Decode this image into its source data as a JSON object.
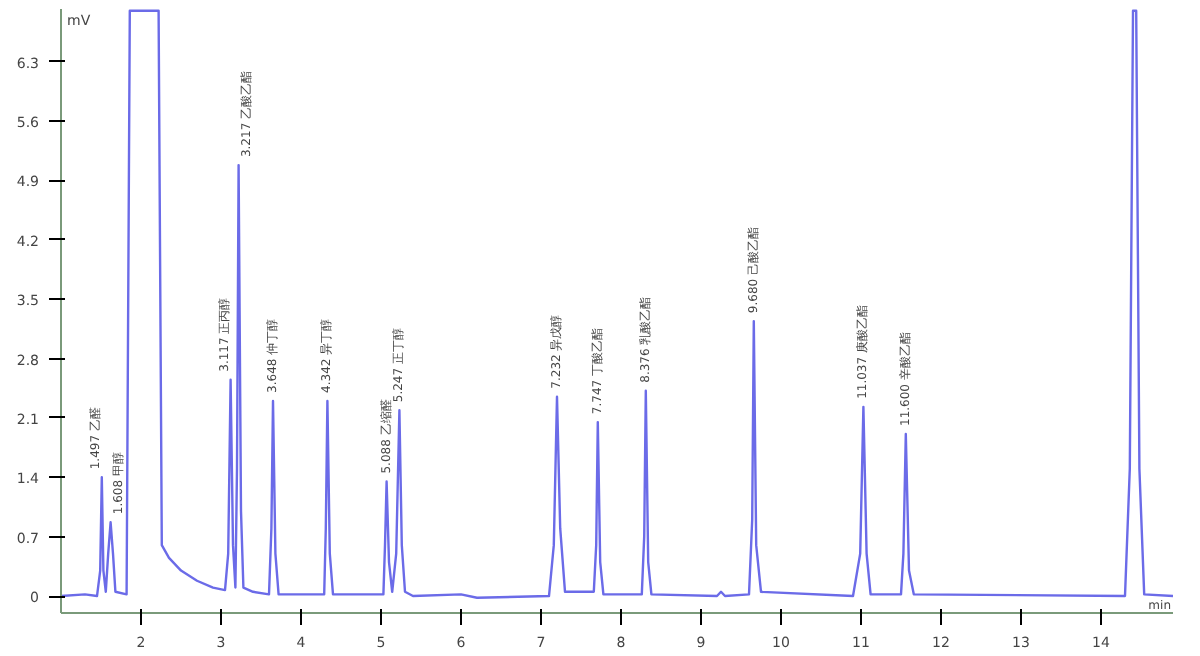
{
  "chart_data": {
    "type": "line",
    "xlabel": "min",
    "ylabel": "mV",
    "x": [
      1.0,
      1.3,
      1.45,
      1.49,
      1.51,
      1.53,
      1.56,
      1.59,
      1.62,
      1.65,
      1.68,
      1.82,
      1.86,
      2.22,
      2.26,
      2.35,
      2.5,
      2.7,
      2.9,
      3.05,
      3.09,
      3.12,
      3.15,
      3.18,
      3.2,
      3.22,
      3.25,
      3.28,
      3.4,
      3.6,
      3.63,
      3.65,
      3.68,
      3.72,
      4.29,
      4.31,
      4.33,
      4.36,
      4.4,
      5.03,
      5.05,
      5.07,
      5.1,
      5.14,
      5.19,
      5.23,
      5.26,
      5.3,
      5.4,
      6.0,
      6.2,
      7.1,
      7.16,
      7.2,
      7.24,
      7.3,
      7.66,
      7.69,
      7.71,
      7.74,
      7.78,
      8.26,
      8.29,
      8.31,
      8.34,
      8.38,
      9.2,
      9.25,
      9.3,
      9.6,
      9.64,
      9.66,
      9.69,
      9.75,
      10.9,
      10.99,
      11.03,
      11.07,
      11.12,
      11.5,
      11.53,
      11.56,
      11.6,
      11.66,
      14.3,
      14.36,
      14.4,
      14.44,
      14.48,
      14.54,
      14.9
    ],
    "series": [
      {
        "color": "#6b6be8",
        "values": [
          0,
          0.02,
          0,
          0.3,
          1.4,
          0.3,
          0.05,
          0.5,
          0.87,
          0.5,
          0.05,
          0.02,
          6.9,
          6.9,
          0.6,
          0.45,
          0.3,
          0.18,
          0.1,
          0.07,
          0.5,
          2.55,
          0.6,
          0.1,
          1.5,
          5.08,
          1.0,
          0.1,
          0.05,
          0.02,
          0.8,
          2.3,
          0.5,
          0.02,
          0.02,
          0.8,
          2.3,
          0.5,
          0.02,
          0.02,
          0.6,
          1.35,
          0.4,
          0.05,
          0.5,
          2.19,
          0.6,
          0.05,
          0,
          0.02,
          -0.02,
          0,
          0.6,
          2.35,
          0.8,
          0.05,
          0.05,
          0.6,
          2.05,
          0.4,
          0.02,
          0.02,
          0.7,
          2.42,
          0.4,
          0.02,
          0,
          0.05,
          0,
          0.02,
          0.9,
          3.24,
          0.6,
          0.05,
          0,
          0.5,
          2.23,
          0.5,
          0.02,
          0.02,
          0.5,
          1.91,
          0.3,
          0.02,
          0,
          1.5,
          6.9,
          6.9,
          1.5,
          0.02,
          0
        ]
      }
    ],
    "xlim": [
      1.0,
      14.9
    ],
    "ylim": [
      -0.2,
      6.92
    ],
    "xticks": [
      2,
      3,
      4,
      5,
      6,
      7,
      8,
      9,
      10,
      11,
      12,
      13,
      14
    ],
    "yticks": [
      0,
      0.7,
      1.4,
      2.1,
      2.8,
      3.5,
      4.2,
      4.9,
      5.6,
      6.3
    ],
    "grid": false,
    "marker": "none",
    "line_style": "solid",
    "annotations": [
      {
        "text": "1.497 乙醛",
        "x": 1.51,
        "y": 1.4
      },
      {
        "text": "1.608 甲醇",
        "x": 1.62,
        "y": 0.87
      },
      {
        "text": "3.117 正丙醇",
        "x": 3.12,
        "y": 2.55
      },
      {
        "text": "3.217 乙酸乙酯",
        "x": 3.22,
        "y": 5.08
      },
      {
        "text": "3.648 仲丁醇",
        "x": 3.65,
        "y": 2.3
      },
      {
        "text": "4.342 异丁醇",
        "x": 4.33,
        "y": 2.3
      },
      {
        "text": "5.088 乙缩醛",
        "x": 5.07,
        "y": 1.35
      },
      {
        "text": "5.247 正丁醇",
        "x": 5.23,
        "y": 2.19
      },
      {
        "text": "7.232 异戊醇",
        "x": 7.2,
        "y": 2.35
      },
      {
        "text": "7.747 丁酸乙酯",
        "x": 7.71,
        "y": 2.05
      },
      {
        "text": "8.376 乳酸乙酯",
        "x": 8.31,
        "y": 2.42
      },
      {
        "text": "9.680 己酸乙酯",
        "x": 9.66,
        "y": 3.24
      },
      {
        "text": "11.037 庚酸乙酯",
        "x": 11.03,
        "y": 2.23
      },
      {
        "text": "11.600 辛酸乙酯",
        "x": 11.56,
        "y": 1.91
      }
    ]
  }
}
